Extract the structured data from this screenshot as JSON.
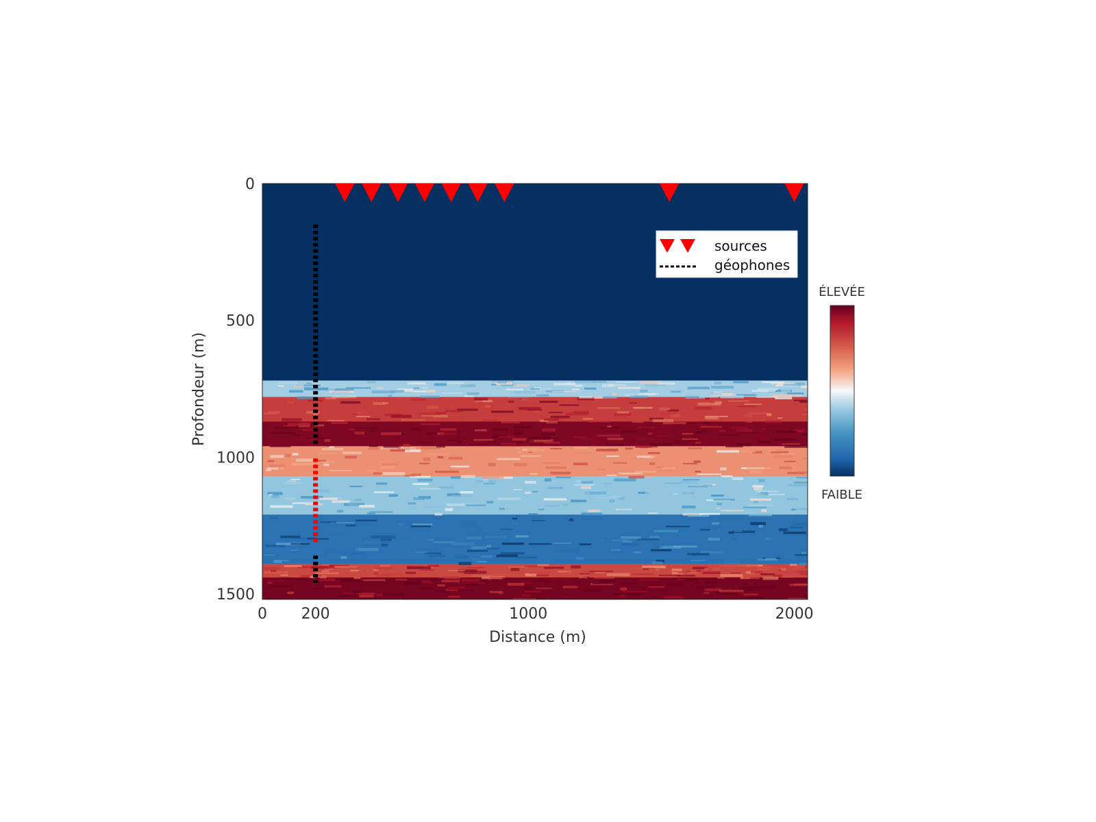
{
  "chart_data": {
    "type": "heatmap",
    "title": "",
    "xlabel": "Distance (m)",
    "ylabel": "Profondeur (m)",
    "x_ticks": [
      0,
      200,
      1000,
      2000
    ],
    "y_ticks": [
      0,
      500,
      1000,
      1500
    ],
    "x_range": [
      0,
      2050
    ],
    "y_range": [
      0,
      1520
    ],
    "y_inverted": true,
    "grid": false,
    "colormap": {
      "name": "RdBu_r",
      "high_label": "ÉLEVÉE",
      "low_label": "FAIBLE",
      "high_color": "#67001f",
      "low_color": "#053061"
    },
    "layers": [
      {
        "top": 0,
        "bottom": 720,
        "level": 0.0
      },
      {
        "top": 720,
        "bottom": 780,
        "level": 0.4
      },
      {
        "top": 780,
        "bottom": 870,
        "level": 0.82
      },
      {
        "top": 870,
        "bottom": 960,
        "level": 0.97
      },
      {
        "top": 960,
        "bottom": 1070,
        "level": 0.66
      },
      {
        "top": 1070,
        "bottom": 1210,
        "level": 0.38
      },
      {
        "top": 1210,
        "bottom": 1390,
        "level": 0.14
      },
      {
        "top": 1390,
        "bottom": 1440,
        "level": 0.8
      },
      {
        "top": 1440,
        "bottom": 1520,
        "level": 0.98
      }
    ],
    "sources": {
      "label": "sources",
      "color": "#ff0000",
      "x": [
        310,
        410,
        510,
        610,
        710,
        810,
        910,
        1530,
        2000
      ],
      "depth": 0
    },
    "geophones": {
      "label": "géophones",
      "x": 200,
      "black_segments": [
        [
          150,
          960
        ],
        [
          1360,
          1460
        ]
      ],
      "red_segments": [
        [
          1005,
          1320
        ]
      ],
      "black_color": "#000000",
      "red_color": "#ff0000"
    },
    "legend_position": "top-right"
  }
}
